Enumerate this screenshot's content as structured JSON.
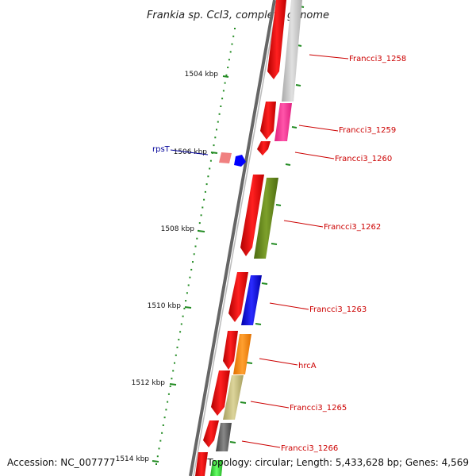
{
  "title": "Frankia sp. CcI3, complete genome",
  "footer": {
    "accession": "Accession: NC_007777",
    "topology": "Topology: circular; Length: 5,433,628 bp; Genes: 4,569"
  },
  "ticks": [
    "1504 kbp",
    "1506 kbp",
    "1508 kbp",
    "1510 kbp",
    "1512 kbp",
    "1514 kbp"
  ],
  "labels": {
    "francci3_1258": "Francci3_1258",
    "francci3_1259": "Francci3_1259",
    "francci3_1260": "Francci3_1260",
    "francci3_1262": "Francci3_1262",
    "francci3_1263": "Francci3_1263",
    "hrcA": "hrcA",
    "francci3_1265": "Francci3_1265",
    "francci3_1266": "Francci3_1266",
    "rpsT": "rpsT"
  },
  "colors": {
    "cds": "#ff0000",
    "gray_gene": "#c8c8c8",
    "magenta_gene": "#ff3399",
    "olive_gene": "#6b8e23",
    "blue_gene": "#0000ff",
    "orange_gene": "#ff8c00",
    "khaki_gene": "#c8c080",
    "darkgray_gene": "#666666",
    "green_gene": "#33cc33",
    "tick": "#228b22",
    "backbone": "#888888"
  }
}
